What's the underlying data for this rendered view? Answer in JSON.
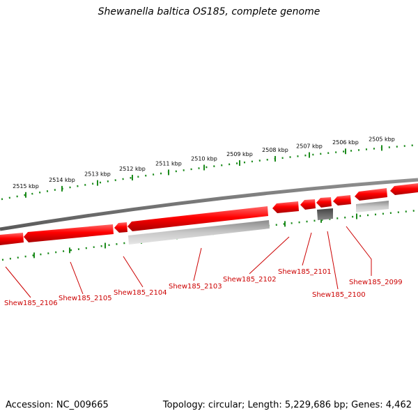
{
  "title": "Shewanella baltica OS185, complete genome",
  "accession": "Accession: NC_009665",
  "summary": "Topology: circular; Length: 5,229,686 bp; Genes: 4,462",
  "scale_labels": [
    "2505 kbp",
    "2506 kbp",
    "2507 kbp",
    "2508 kbp",
    "2509 kbp",
    "2510 kbp",
    "2511 kbp",
    "2512 kbp",
    "2513 kbp",
    "2514 kbp",
    "2515 kbp"
  ],
  "genes": [
    "Shew185_2099",
    "Shew185_2100",
    "Shew185_2101",
    "Shew185_2102",
    "Shew185_2103",
    "Shew185_2104",
    "Shew185_2105",
    "Shew185_2106"
  ],
  "colors": {
    "gene_fill": "#ff0000",
    "gene_dark": "#b40000",
    "backbone": "#707070",
    "tick": "#1a8a1a",
    "label": "#cc0000",
    "feature_gray": "#b4b4b4",
    "feature_dark": "#555555"
  }
}
